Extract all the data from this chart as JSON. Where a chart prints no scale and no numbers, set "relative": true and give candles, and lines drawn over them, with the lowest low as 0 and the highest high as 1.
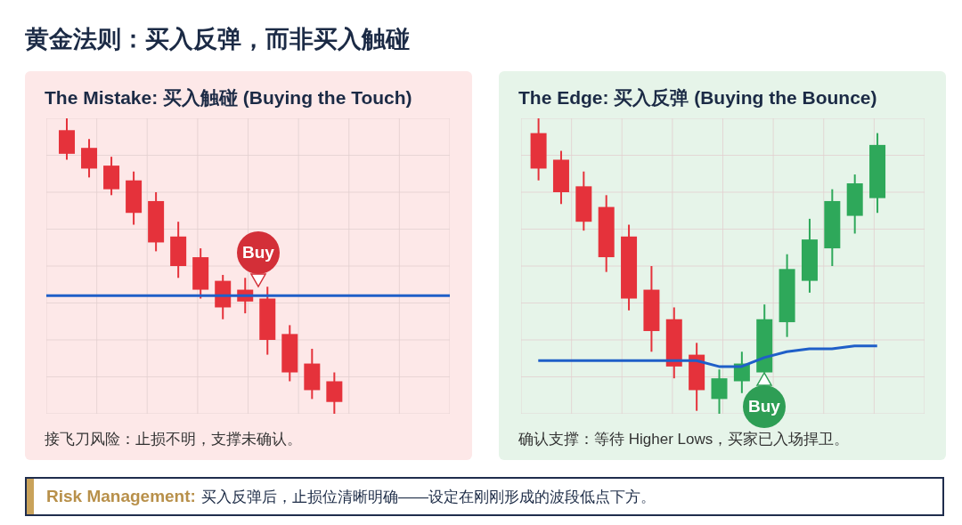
{
  "chart_data": [
    {
      "type": "candlestick",
      "title": "The Mistake: 买入触碰 (Buying the Touch)",
      "relative": true,
      "tick_labels": false,
      "grid": true,
      "categories": [
        null,
        null,
        null,
        null,
        null,
        null,
        null,
        null,
        null,
        null,
        null,
        null,
        null
      ],
      "ohlc": [
        [
          0.96,
          1,
          0.86,
          0.88
        ],
        [
          0.9,
          0.93,
          0.8,
          0.83
        ],
        [
          0.84,
          0.87,
          0.74,
          0.76
        ],
        [
          0.79,
          0.82,
          0.64,
          0.68
        ],
        [
          0.72,
          0.75,
          0.55,
          0.58
        ],
        [
          0.6,
          0.65,
          0.46,
          0.5
        ],
        [
          0.53,
          0.56,
          0.39,
          0.42
        ],
        [
          0.45,
          0.47,
          0.32,
          0.36
        ],
        [
          0.42,
          0.46,
          0.34,
          0.38
        ],
        [
          0.39,
          0.43,
          0.2,
          0.25
        ],
        [
          0.27,
          0.3,
          0.11,
          0.14
        ],
        [
          0.17,
          0.22,
          0.05,
          0.08
        ],
        [
          0.11,
          0.14,
          0,
          0.04
        ]
      ],
      "colors": [
        "#e5323b",
        "#e5323b",
        "#e5323b",
        "#e5323b",
        "#e5323b",
        "#e5323b",
        "#e5323b",
        "#e5323b",
        "#e5323b",
        "#e5323b",
        "#e5323b",
        "#e5323b",
        "#e5323b"
      ],
      "ref_lines": [
        {
          "axis": "y",
          "value": 0.4,
          "color": "#1f5fc8"
        }
      ],
      "annotations": [
        "黄金法则：买入反弹，而非买入触碰",
        "Buy",
        "接飞刀风险：止损不明，支撑未确认。",
        "Risk Management:",
        "买入反弹后，止损位清晰明确——设定在刚刚形成的波段低点下方。"
      ]
    },
    {
      "type": "candlestick",
      "title": "The Edge: 买入反弹 (Buying the Bounce)",
      "relative": true,
      "tick_labels": false,
      "grid": true,
      "categories": [
        null,
        null,
        null,
        null,
        null,
        null,
        null,
        null,
        null,
        null,
        null,
        null,
        null,
        null,
        null,
        null
      ],
      "ohlc": [
        [
          0.95,
          1,
          0.79,
          0.83
        ],
        [
          0.86,
          0.89,
          0.71,
          0.75
        ],
        [
          0.77,
          0.82,
          0.62,
          0.65
        ],
        [
          0.7,
          0.74,
          0.48,
          0.53
        ],
        [
          0.6,
          0.64,
          0.35,
          0.39
        ],
        [
          0.42,
          0.5,
          0.21,
          0.28
        ],
        [
          0.32,
          0.36,
          0.12,
          0.16
        ],
        [
          0.2,
          0.24,
          0.01,
          0.08
        ],
        [
          0.05,
          0.15,
          0,
          0.12
        ],
        [
          0.11,
          0.21,
          0.07,
          0.17
        ],
        [
          0.14,
          0.37,
          0.14,
          0.32
        ],
        [
          0.31,
          0.54,
          0.26,
          0.49
        ],
        [
          0.45,
          0.66,
          0.41,
          0.59
        ],
        [
          0.56,
          0.76,
          0.5,
          0.72
        ],
        [
          0.67,
          0.81,
          0.61,
          0.78
        ],
        [
          0.73,
          0.95,
          0.68,
          0.91
        ]
      ],
      "colors": [
        "#e5323b",
        "#e5323b",
        "#e5323b",
        "#e5323b",
        "#e5323b",
        "#e5323b",
        "#e5323b",
        "#e5323b",
        "#2ea85a",
        "#2ea85a",
        "#2ea85a",
        "#2ea85a",
        "#2ea85a",
        "#2ea85a",
        "#2ea85a",
        "#2ea85a"
      ],
      "series": [
        {
          "type": "line",
          "color": "#1f5fc8",
          "values": [
            0.18,
            0.18,
            0.18,
            0.18,
            0.18,
            0.18,
            0.18,
            0.18,
            0.16,
            0.16,
            0.19,
            0.21,
            0.22,
            0.22,
            0.23,
            0.23
          ]
        }
      ],
      "annotations": [
        "Buy",
        "确认支撑：等待 Higher Lows，买家已入场捍卫。"
      ]
    }
  ]
}
